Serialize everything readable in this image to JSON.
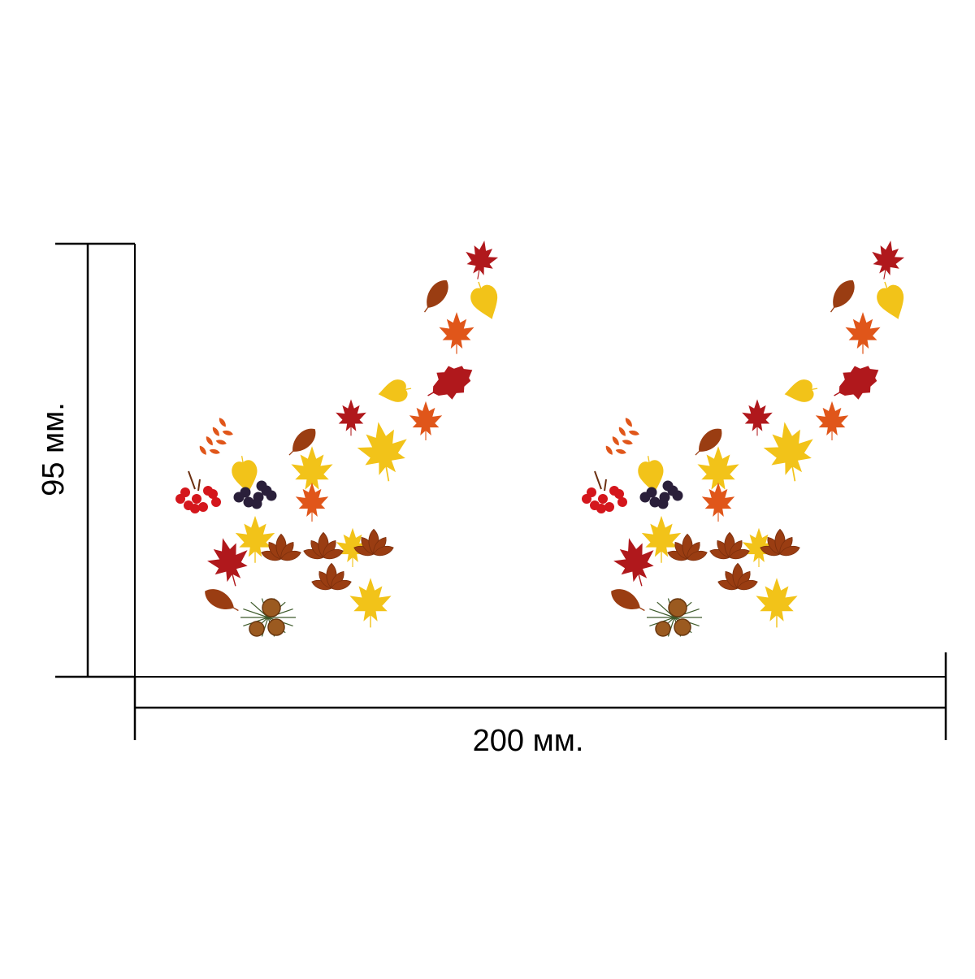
{
  "dimensions": {
    "width_label": "200 мм.",
    "height_label": "95 мм."
  },
  "decal": {
    "copies": 2,
    "elements": [
      "maple-leaf",
      "birch-leaf",
      "chestnut-leaf",
      "rowan-leaf",
      "rowan-berries",
      "chokeberry-cluster",
      "pine-cones"
    ]
  },
  "colors": {
    "line": "#000000",
    "background": "#ffffff",
    "leaf_red": "#b0181c",
    "leaf_orange": "#e0561a",
    "leaf_yellow": "#f2c319",
    "leaf_brown": "#9a3d12",
    "berry_red": "#d4161c",
    "berry_dark": "#2a1f3a",
    "cone": "#9b5a20",
    "needle": "#3d5a2a"
  }
}
